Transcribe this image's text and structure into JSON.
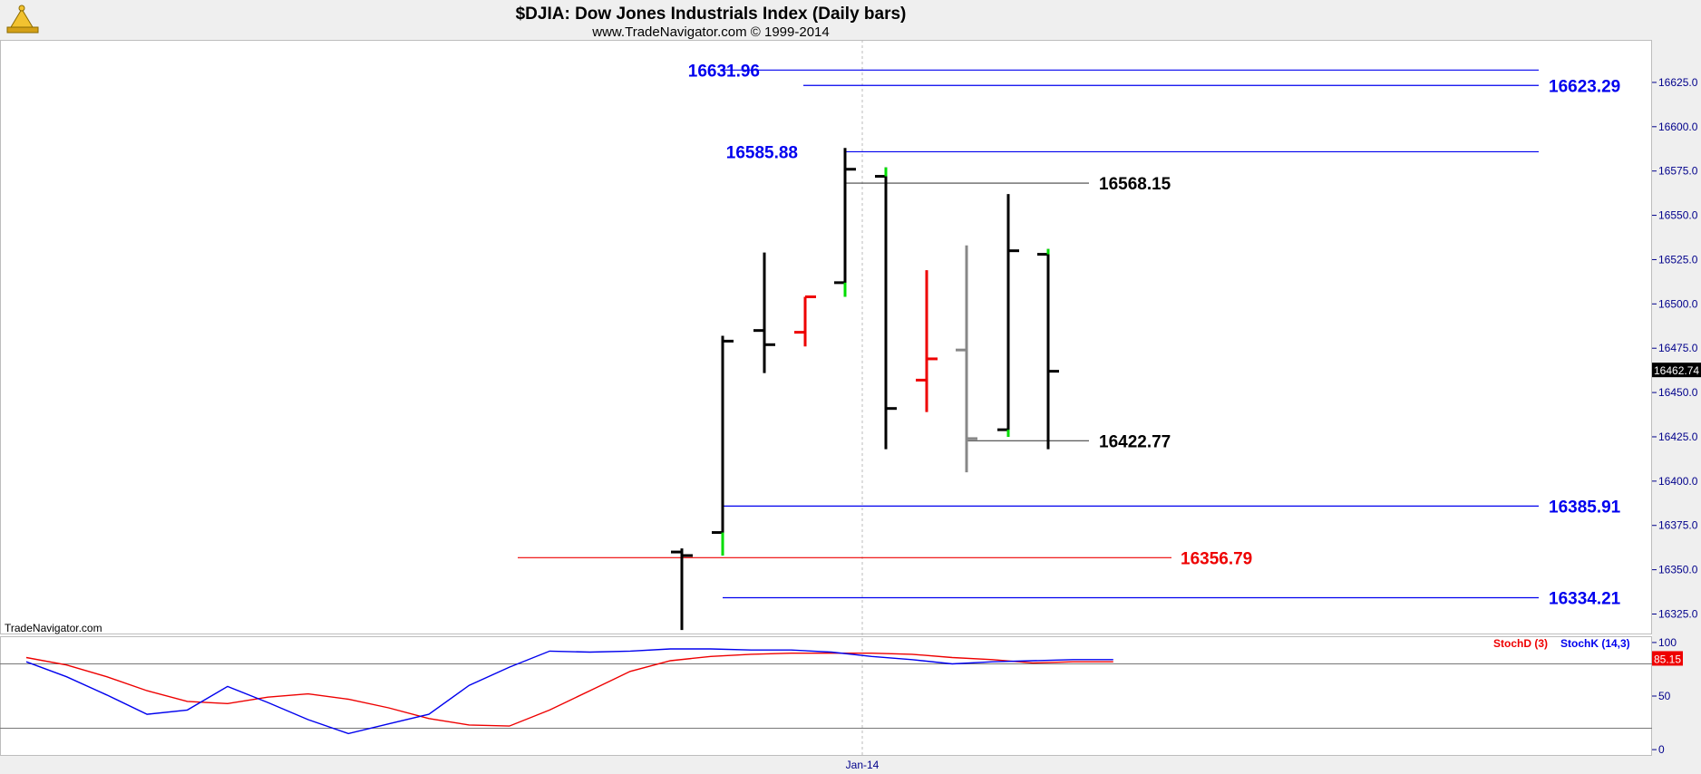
{
  "header": {
    "title": "$DJIA:  Dow Jones Industrials Index  (Daily bars)",
    "subtitle": "www.TradeNavigator.com © 1999-2014"
  },
  "watermark": "TradeNavigator.com",
  "x_axis": {
    "label": "Jan-14"
  },
  "colors": {
    "up_tick": "#00dd00",
    "level_blue": "#0000ee",
    "level_red": "#ee0000",
    "bar": "#000000",
    "bar_red": "#ee0000",
    "bar_gray": "#888888",
    "stoch_d": "#ee0000",
    "stoch_k": "#0000ee"
  },
  "chart_data": [
    {
      "type": "ohlc",
      "title": "$DJIA:  Dow Jones Industrials Index  (Daily bars)",
      "ylim": [
        16314,
        16649
      ],
      "y_ticks": [
        "16625.0",
        "16600.0",
        "16575.0",
        "16550.0",
        "16525.0",
        "16500.0",
        "16475.0",
        "16450.0",
        "16425.0",
        "16400.0",
        "16375.0",
        "16350.0",
        "16325.0"
      ],
      "last_price": "16462.74",
      "bars": [
        {
          "open": 16360,
          "high": 16362,
          "low": 16316,
          "close": 16358,
          "color": "black"
        },
        {
          "open": 16371,
          "high": 16482,
          "low": 16358,
          "close": 16479,
          "color": "black"
        },
        {
          "open": 16485,
          "high": 16529,
          "low": 16461,
          "close": 16477,
          "color": "black"
        },
        {
          "open": 16484,
          "high": 16504,
          "low": 16476,
          "close": 16504,
          "color": "red"
        },
        {
          "open": 16512,
          "high": 16588,
          "low": 16504,
          "close": 16576,
          "color": "black"
        },
        {
          "open": 16572,
          "high": 16577,
          "low": 16418,
          "close": 16441,
          "color": "black"
        },
        {
          "open": 16457,
          "high": 16519,
          "low": 16439,
          "close": 16469,
          "color": "red"
        },
        {
          "open": 16474,
          "high": 16533,
          "low": 16405,
          "close": 16424,
          "color": "gray"
        },
        {
          "open": 16429,
          "high": 16562,
          "low": 16425,
          "close": 16530,
          "color": "black"
        },
        {
          "open": 16528,
          "high": 16531,
          "low": 16418,
          "close": 16462,
          "color": "black"
        }
      ],
      "levels": [
        {
          "value": 16631.96,
          "label": "16631.96",
          "color": "blue"
        },
        {
          "value": 16623.29,
          "label": "16623.29",
          "color": "blue"
        },
        {
          "value": 16585.88,
          "label": "16585.88",
          "color": "blue"
        },
        {
          "value": 16568.15,
          "label": "16568.15",
          "color": "black"
        },
        {
          "value": 16422.77,
          "label": "16422.77",
          "color": "black"
        },
        {
          "value": 16385.91,
          "label": "16385.91",
          "color": "blue"
        },
        {
          "value": 16356.79,
          "label": "16356.79",
          "color": "red"
        },
        {
          "value": 16334.21,
          "label": "16334.21",
          "color": "blue"
        }
      ]
    },
    {
      "type": "line",
      "ylim": [
        -5,
        105
      ],
      "y_ticks": [
        "100",
        "50",
        "0"
      ],
      "reference_lines": [
        80,
        20
      ],
      "last_value": "85.15",
      "series": [
        {
          "name": "StochD (3)",
          "color": "red",
          "values": [
            86,
            79,
            68,
            55,
            45,
            43,
            49,
            52,
            47,
            39,
            29,
            23,
            22,
            37,
            55,
            73,
            83,
            87,
            89,
            90,
            90,
            90,
            89,
            86,
            84,
            81,
            82,
            82
          ]
        },
        {
          "name": "StochK (14,3)",
          "color": "blue",
          "values": [
            82,
            68,
            51,
            33,
            37,
            59,
            44,
            28,
            15,
            24,
            33,
            60,
            77,
            92,
            91,
            92,
            94,
            94,
            93,
            93,
            91,
            87,
            84,
            80,
            82,
            83,
            84,
            84
          ]
        }
      ]
    }
  ]
}
